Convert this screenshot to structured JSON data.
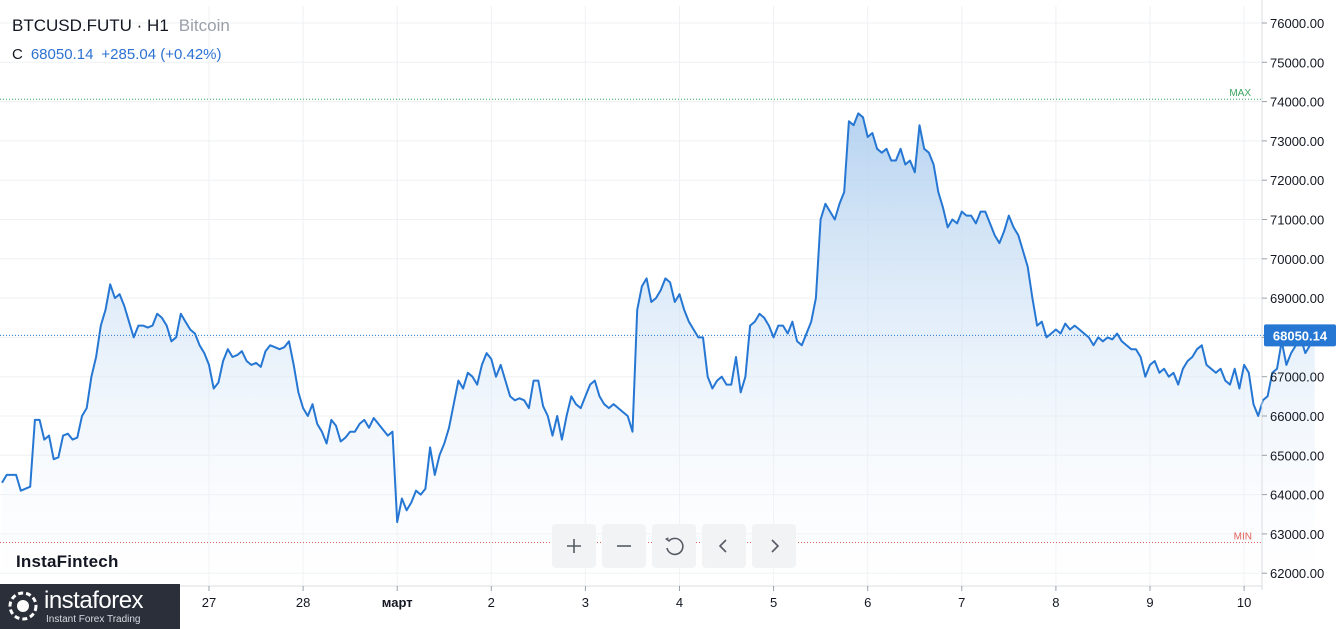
{
  "legend": {
    "symbol": "BTCUSD.FUTU · H1",
    "name": "Bitcoin",
    "close_label": "C",
    "close_value": "68050.14",
    "change": "+285.04 (+0.42%)"
  },
  "watermark": "InstaFintech",
  "branding": {
    "wordmark": "instaforex",
    "tagline": "Instant Forex Trading"
  },
  "toolbar": {
    "zoom_in_icon": "plus-icon",
    "zoom_out_icon": "minus-icon",
    "reset_icon": "reset-icon",
    "scroll_left_icon": "chevron-left-icon",
    "scroll_right_icon": "chevron-right-icon"
  },
  "colors": {
    "line": "#2677d3",
    "fill_top": "#a9cbee",
    "fill_bottom": "#ffffff",
    "max_line": "#3aa55d",
    "min_line": "#e0605a",
    "last_price_badge": "#2677d3",
    "grid": "#eef0f3"
  },
  "chart_data": {
    "type": "area",
    "ylim": [
      61800,
      76500
    ],
    "y_ticks": [
      "62000.00",
      "63000.00",
      "64000.00",
      "65000.00",
      "66000.00",
      "67000.00",
      "68000.00",
      "69000.00",
      "70000.00",
      "71000.00",
      "72000.00",
      "73000.00",
      "74000.00",
      "75000.00",
      "76000.00"
    ],
    "x_tick_labels": [
      "27",
      "28",
      "март",
      "2",
      "3",
      "4",
      "5",
      "6",
      "7",
      "8",
      "9",
      "10"
    ],
    "x_tick_positions": [
      1,
      2,
      3,
      4,
      5,
      6,
      7,
      8,
      9,
      10,
      11,
      12
    ],
    "x_range": [
      -1.2,
      12.2
    ],
    "max_label": "MAX",
    "max_value": 74060,
    "min_label": "MIN",
    "min_value": 62780,
    "last_value": 68050.14,
    "last_value_label": "68050.14",
    "grid": true,
    "points": [
      [
        -1.2,
        64300
      ],
      [
        -1.15,
        64500
      ],
      [
        -1.05,
        64500
      ],
      [
        -1.0,
        64100
      ],
      [
        -0.95,
        64150
      ],
      [
        -0.9,
        64200
      ],
      [
        -0.85,
        65900
      ],
      [
        -0.8,
        65900
      ],
      [
        -0.75,
        65400
      ],
      [
        -0.7,
        65500
      ],
      [
        -0.65,
        64900
      ],
      [
        -0.6,
        64950
      ],
      [
        -0.55,
        65500
      ],
      [
        -0.5,
        65550
      ],
      [
        -0.45,
        65400
      ],
      [
        -0.4,
        65450
      ],
      [
        -0.35,
        66000
      ],
      [
        -0.3,
        66200
      ],
      [
        -0.25,
        67000
      ],
      [
        -0.2,
        67500
      ],
      [
        -0.15,
        68300
      ],
      [
        -0.1,
        68700
      ],
      [
        -0.05,
        69350
      ],
      [
        0.0,
        69000
      ],
      [
        0.05,
        69100
      ],
      [
        0.1,
        68800
      ],
      [
        0.15,
        68400
      ],
      [
        0.2,
        68000
      ],
      [
        0.25,
        68300
      ],
      [
        0.3,
        68300
      ],
      [
        0.35,
        68250
      ],
      [
        0.4,
        68300
      ],
      [
        0.45,
        68600
      ],
      [
        0.5,
        68500
      ],
      [
        0.55,
        68300
      ],
      [
        0.6,
        67900
      ],
      [
        0.65,
        68000
      ],
      [
        0.7,
        68600
      ],
      [
        0.75,
        68400
      ],
      [
        0.8,
        68200
      ],
      [
        0.85,
        68100
      ],
      [
        0.9,
        67800
      ],
      [
        0.95,
        67600
      ],
      [
        1.0,
        67300
      ],
      [
        1.05,
        66700
      ],
      [
        1.1,
        66850
      ],
      [
        1.15,
        67400
      ],
      [
        1.2,
        67700
      ],
      [
        1.25,
        67500
      ],
      [
        1.3,
        67550
      ],
      [
        1.35,
        67650
      ],
      [
        1.4,
        67400
      ],
      [
        1.45,
        67300
      ],
      [
        1.5,
        67350
      ],
      [
        1.55,
        67250
      ],
      [
        1.6,
        67650
      ],
      [
        1.65,
        67800
      ],
      [
        1.7,
        67750
      ],
      [
        1.75,
        67700
      ],
      [
        1.8,
        67750
      ],
      [
        1.85,
        67900
      ],
      [
        1.9,
        67300
      ],
      [
        1.95,
        66600
      ],
      [
        2.0,
        66200
      ],
      [
        2.05,
        66000
      ],
      [
        2.1,
        66300
      ],
      [
        2.15,
        65800
      ],
      [
        2.2,
        65600
      ],
      [
        2.25,
        65300
      ],
      [
        2.3,
        65900
      ],
      [
        2.35,
        65750
      ],
      [
        2.4,
        65350
      ],
      [
        2.45,
        65450
      ],
      [
        2.5,
        65600
      ],
      [
        2.55,
        65600
      ],
      [
        2.6,
        65800
      ],
      [
        2.65,
        65900
      ],
      [
        2.7,
        65700
      ],
      [
        2.75,
        65950
      ],
      [
        2.8,
        65800
      ],
      [
        2.85,
        65650
      ],
      [
        2.9,
        65500
      ],
      [
        2.95,
        65600
      ],
      [
        3.0,
        63300
      ],
      [
        3.05,
        63900
      ],
      [
        3.1,
        63600
      ],
      [
        3.15,
        63800
      ],
      [
        3.2,
        64100
      ],
      [
        3.25,
        64000
      ],
      [
        3.3,
        64150
      ],
      [
        3.35,
        65200
      ],
      [
        3.4,
        64500
      ],
      [
        3.45,
        65000
      ],
      [
        3.5,
        65300
      ],
      [
        3.55,
        65700
      ],
      [
        3.6,
        66300
      ],
      [
        3.65,
        66900
      ],
      [
        3.7,
        66700
      ],
      [
        3.75,
        67100
      ],
      [
        3.8,
        67000
      ],
      [
        3.85,
        66800
      ],
      [
        3.9,
        67300
      ],
      [
        3.95,
        67600
      ],
      [
        4.0,
        67450
      ],
      [
        4.05,
        67000
      ],
      [
        4.1,
        67300
      ],
      [
        4.15,
        66900
      ],
      [
        4.2,
        66500
      ],
      [
        4.25,
        66400
      ],
      [
        4.3,
        66450
      ],
      [
        4.35,
        66400
      ],
      [
        4.4,
        66200
      ],
      [
        4.45,
        66900
      ],
      [
        4.5,
        66900
      ],
      [
        4.55,
        66250
      ],
      [
        4.6,
        66000
      ],
      [
        4.65,
        65500
      ],
      [
        4.7,
        66000
      ],
      [
        4.75,
        65400
      ],
      [
        4.8,
        66000
      ],
      [
        4.85,
        66500
      ],
      [
        4.9,
        66300
      ],
      [
        4.95,
        66200
      ],
      [
        5.0,
        66500
      ],
      [
        5.05,
        66800
      ],
      [
        5.1,
        66900
      ],
      [
        5.15,
        66500
      ],
      [
        5.2,
        66300
      ],
      [
        5.25,
        66200
      ],
      [
        5.3,
        66300
      ],
      [
        5.35,
        66200
      ],
      [
        5.4,
        66100
      ],
      [
        5.45,
        66000
      ],
      [
        5.5,
        65600
      ],
      [
        5.55,
        68700
      ],
      [
        5.6,
        69300
      ],
      [
        5.65,
        69500
      ],
      [
        5.7,
        68900
      ],
      [
        5.75,
        69000
      ],
      [
        5.8,
        69200
      ],
      [
        5.85,
        69500
      ],
      [
        5.9,
        69400
      ],
      [
        5.95,
        68900
      ],
      [
        6.0,
        69100
      ],
      [
        6.05,
        68700
      ],
      [
        6.1,
        68400
      ],
      [
        6.15,
        68200
      ],
      [
        6.2,
        68000
      ],
      [
        6.25,
        68000
      ],
      [
        6.3,
        67000
      ],
      [
        6.35,
        66700
      ],
      [
        6.4,
        66900
      ],
      [
        6.45,
        67000
      ],
      [
        6.5,
        66800
      ],
      [
        6.55,
        66800
      ],
      [
        6.6,
        67500
      ],
      [
        6.65,
        66600
      ],
      [
        6.7,
        67000
      ],
      [
        6.75,
        68300
      ],
      [
        6.8,
        68400
      ],
      [
        6.85,
        68600
      ],
      [
        6.9,
        68500
      ],
      [
        6.95,
        68300
      ],
      [
        7.0,
        68000
      ],
      [
        7.05,
        68300
      ],
      [
        7.1,
        68300
      ],
      [
        7.15,
        68100
      ],
      [
        7.2,
        68400
      ],
      [
        7.25,
        67900
      ],
      [
        7.3,
        67800
      ],
      [
        7.35,
        68100
      ],
      [
        7.4,
        68400
      ],
      [
        7.45,
        69000
      ],
      [
        7.5,
        71000
      ],
      [
        7.55,
        71400
      ],
      [
        7.6,
        71200
      ],
      [
        7.65,
        71000
      ],
      [
        7.7,
        71400
      ],
      [
        7.75,
        71700
      ],
      [
        7.8,
        73500
      ],
      [
        7.85,
        73400
      ],
      [
        7.9,
        73700
      ],
      [
        7.95,
        73600
      ],
      [
        8.0,
        73100
      ],
      [
        8.05,
        73200
      ],
      [
        8.1,
        72800
      ],
      [
        8.15,
        72700
      ],
      [
        8.2,
        72800
      ],
      [
        8.25,
        72500
      ],
      [
        8.3,
        72500
      ],
      [
        8.35,
        72800
      ],
      [
        8.4,
        72400
      ],
      [
        8.45,
        72500
      ],
      [
        8.5,
        72200
      ],
      [
        8.55,
        73400
      ],
      [
        8.6,
        72800
      ],
      [
        8.65,
        72700
      ],
      [
        8.7,
        72400
      ],
      [
        8.75,
        71700
      ],
      [
        8.8,
        71300
      ],
      [
        8.85,
        70800
      ],
      [
        8.9,
        71000
      ],
      [
        8.95,
        70900
      ],
      [
        9.0,
        71200
      ],
      [
        9.05,
        71100
      ],
      [
        9.1,
        71100
      ],
      [
        9.15,
        70900
      ],
      [
        9.2,
        71200
      ],
      [
        9.25,
        71200
      ],
      [
        9.3,
        70900
      ],
      [
        9.35,
        70600
      ],
      [
        9.4,
        70400
      ],
      [
        9.45,
        70700
      ],
      [
        9.5,
        71100
      ],
      [
        9.55,
        70800
      ],
      [
        9.6,
        70600
      ],
      [
        9.65,
        70200
      ],
      [
        9.7,
        69800
      ],
      [
        9.75,
        69000
      ],
      [
        9.8,
        68300
      ],
      [
        9.85,
        68400
      ],
      [
        9.9,
        68000
      ],
      [
        9.95,
        68100
      ],
      [
        10.0,
        68200
      ],
      [
        10.05,
        68100
      ],
      [
        10.1,
        68350
      ],
      [
        10.15,
        68200
      ],
      [
        10.2,
        68300
      ],
      [
        10.25,
        68200
      ],
      [
        10.3,
        68100
      ],
      [
        10.35,
        68000
      ],
      [
        10.4,
        67800
      ],
      [
        10.45,
        68000
      ],
      [
        10.5,
        67900
      ],
      [
        10.55,
        68000
      ],
      [
        10.6,
        67950
      ],
      [
        10.65,
        68100
      ],
      [
        10.7,
        67900
      ],
      [
        10.75,
        67800
      ],
      [
        10.8,
        67700
      ],
      [
        10.85,
        67700
      ],
      [
        10.9,
        67500
      ],
      [
        10.95,
        67000
      ],
      [
        11.0,
        67300
      ],
      [
        11.05,
        67400
      ],
      [
        11.1,
        67100
      ],
      [
        11.15,
        67200
      ],
      [
        11.2,
        67000
      ],
      [
        11.25,
        67100
      ],
      [
        11.3,
        66800
      ],
      [
        11.35,
        67200
      ],
      [
        11.4,
        67400
      ],
      [
        11.45,
        67500
      ],
      [
        11.5,
        67700
      ],
      [
        11.55,
        67800
      ],
      [
        11.6,
        67300
      ],
      [
        11.65,
        67200
      ],
      [
        11.7,
        67100
      ],
      [
        11.75,
        67200
      ],
      [
        11.8,
        66900
      ],
      [
        11.85,
        66800
      ],
      [
        11.9,
        67200
      ],
      [
        11.95,
        66700
      ],
      [
        12.0,
        67300
      ],
      [
        12.05,
        67100
      ],
      [
        12.1,
        66300
      ],
      [
        12.15,
        66000
      ],
      [
        12.2,
        66400
      ],
      [
        12.25,
        66500
      ],
      [
        12.3,
        67100
      ],
      [
        12.35,
        67200
      ],
      [
        12.4,
        67900
      ],
      [
        12.45,
        67300
      ],
      [
        12.5,
        67600
      ],
      [
        12.55,
        67800
      ],
      [
        12.6,
        68000
      ],
      [
        12.65,
        67600
      ],
      [
        12.7,
        67800
      ],
      [
        12.75,
        68050.14
      ]
    ]
  }
}
